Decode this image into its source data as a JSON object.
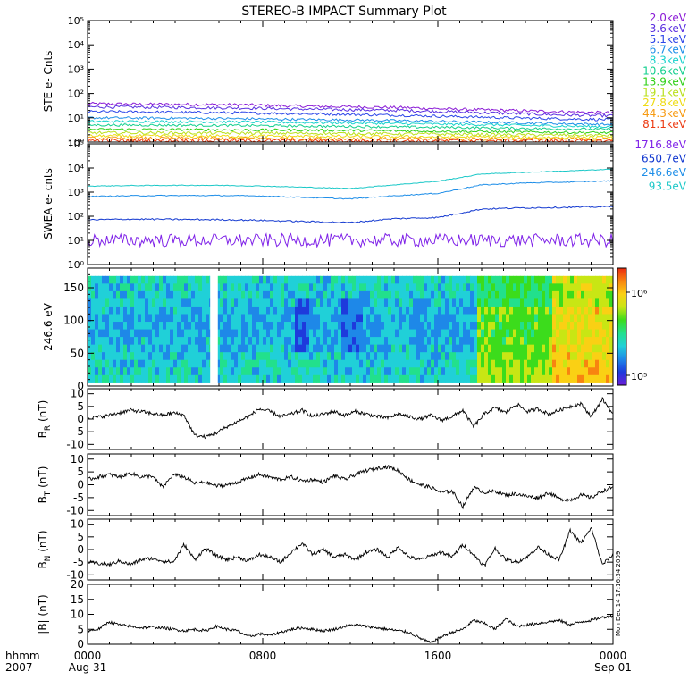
{
  "chart_data": {
    "type": "line",
    "title": "STEREO-B IMPACT Summary Plot",
    "time_axis": {
      "corner_labels": [
        "hhmm",
        "2007"
      ],
      "ticks": [
        {
          "hours": 0,
          "line1": "0000",
          "line2": "Aug 31"
        },
        {
          "hours": 8,
          "line1": "0800",
          "line2": ""
        },
        {
          "hours": 16,
          "line1": "1600",
          "line2": ""
        },
        {
          "hours": 24,
          "line1": "0000",
          "line2": "Sep 01"
        }
      ],
      "range_hours": [
        0,
        24
      ]
    },
    "side_stamp": "Mon Dec 14 17:16:34 2009",
    "panels": [
      {
        "id": "ste",
        "ylabel": "STE e- Cnts",
        "scale": "log",
        "ylim_exp": [
          0,
          5
        ],
        "tick_labels": [
          "10⁰",
          "10¹",
          "10²",
          "10³",
          "10⁴",
          "10⁵"
        ],
        "legend": [
          {
            "label": "2.0keV",
            "color": "#8a1ad6"
          },
          {
            "label": "3.6keV",
            "color": "#5a2fe0"
          },
          {
            "label": "5.1keV",
            "color": "#2c46e8"
          },
          {
            "label": "6.7keV",
            "color": "#1e90e8"
          },
          {
            "label": "8.3keV",
            "color": "#18d2cc"
          },
          {
            "label": "10.6keV",
            "color": "#12cf8e"
          },
          {
            "label": "13.9keV",
            "color": "#2fd017"
          },
          {
            "label": "19.1keV",
            "color": "#b9e01a"
          },
          {
            "label": "27.8keV",
            "color": "#eedb10"
          },
          {
            "label": "44.3keV",
            "color": "#f79a10"
          },
          {
            "label": "81.1keV",
            "color": "#ec3a12"
          }
        ],
        "series": [
          {
            "label": "2.0keV",
            "log_values": [
              1.58,
              1.56,
              1.55,
              1.53,
              1.48,
              1.45,
              1.42,
              1.35,
              1.3,
              1.25,
              1.2
            ]
          },
          {
            "label": "3.6keV",
            "log_values": [
              1.45,
              1.44,
              1.42,
              1.4,
              1.36,
              1.33,
              1.3,
              1.24,
              1.18,
              1.12,
              1.08
            ]
          },
          {
            "label": "5.1keV",
            "log_values": [
              1.25,
              1.24,
              1.22,
              1.2,
              1.17,
              1.14,
              1.1,
              1.05,
              1.0,
              0.96,
              0.92
            ]
          },
          {
            "label": "6.7keV",
            "log_values": [
              1.0,
              0.99,
              0.98,
              0.96,
              0.93,
              0.91,
              0.88,
              0.84,
              0.8,
              0.76,
              0.72
            ]
          },
          {
            "label": "8.3keV",
            "log_values": [
              0.85,
              0.85,
              0.84,
              0.83,
              0.81,
              0.79,
              0.76,
              0.73,
              0.7,
              0.66,
              0.63
            ]
          },
          {
            "label": "10.6keV",
            "log_values": [
              0.7,
              0.7,
              0.69,
              0.68,
              0.66,
              0.64,
              0.62,
              0.6,
              0.57,
              0.54,
              0.52
            ]
          },
          {
            "label": "13.9keV",
            "log_values": [
              0.52,
              0.52,
              0.51,
              0.5,
              0.49,
              0.48,
              0.46,
              0.44,
              0.42,
              0.4,
              0.38
            ]
          },
          {
            "label": "19.1keV",
            "log_values": [
              0.38,
              0.38,
              0.37,
              0.37,
              0.36,
              0.35,
              0.34,
              0.32,
              0.3,
              0.29,
              0.28
            ]
          },
          {
            "label": "27.8keV",
            "log_values": [
              0.25,
              0.25,
              0.25,
              0.24,
              0.24,
              0.23,
              0.22,
              0.21,
              0.2,
              0.19,
              0.18
            ]
          },
          {
            "label": "44.3keV",
            "log_values": [
              0.15,
              0.15,
              0.15,
              0.15,
              0.14,
              0.14,
              0.13,
              0.13,
              0.12,
              0.12,
              0.11
            ]
          },
          {
            "label": "81.1keV",
            "log_values": [
              0.06,
              0.06,
              0.06,
              0.06,
              0.06,
              0.05,
              0.05,
              0.05,
              0.05,
              0.05,
              0.05
            ]
          }
        ]
      },
      {
        "id": "swea",
        "ylabel": "SWEA e- cnts",
        "scale": "log",
        "ylim_exp": [
          0,
          5
        ],
        "tick_labels": [
          "10⁰",
          "10¹",
          "10²",
          "10³",
          "10⁴",
          "10⁵"
        ],
        "legend": [
          {
            "label": "1716.8eV",
            "color": "#7f22e8"
          },
          {
            "label": "650.7eV",
            "color": "#1238d0"
          },
          {
            "label": "246.6eV",
            "color": "#1e8ee8"
          },
          {
            "label": "93.5eV",
            "color": "#1cc8c8"
          }
        ],
        "series": [
          {
            "label": "1716.8eV",
            "log_values": [
              1.0,
              1.0,
              1.0,
              1.0,
              1.0,
              1.0,
              1.0,
              1.0,
              1.0,
              1.0,
              1.0,
              1.0,
              1.0
            ]
          },
          {
            "label": "650.7eV",
            "log_values": [
              1.85,
              1.88,
              1.87,
              1.86,
              1.83,
              1.78,
              1.74,
              1.9,
              1.95,
              2.3,
              2.35,
              2.37,
              2.4
            ]
          },
          {
            "label": "246.6eV",
            "log_values": [
              2.82,
              2.85,
              2.86,
              2.86,
              2.84,
              2.78,
              2.72,
              2.85,
              2.95,
              3.3,
              3.38,
              3.42,
              3.47
            ]
          },
          {
            "label": "93.5eV",
            "log_values": [
              3.25,
              3.27,
              3.28,
              3.28,
              3.25,
              3.2,
              3.15,
              3.3,
              3.45,
              3.75,
              3.82,
              3.88,
              3.95
            ]
          }
        ]
      },
      {
        "id": "pad",
        "type": "heatmap",
        "ylabel": "246.6 eV",
        "ylim": [
          0,
          180
        ],
        "yticks": [
          0,
          50,
          100,
          150
        ],
        "colorbar_labels": [
          "10⁵",
          "10⁶"
        ],
        "colorscale": [
          "#6a1fd8",
          "#1e3adc",
          "#1e88e8",
          "#20d0d8",
          "#22e08c",
          "#3cdc1c",
          "#c8e614",
          "#fad014",
          "#f88410",
          "#ea2a10"
        ]
      },
      {
        "id": "br",
        "ylabel": "B_R (nT)",
        "ylabel_main": "B",
        "ylabel_sub": "R",
        "ylabel_unit": "(nT)",
        "ylim": [
          -12,
          12
        ],
        "yticks": [
          -10,
          -5,
          0,
          5,
          10
        ],
        "values": [
          0.5,
          0.8,
          1.5,
          2.5,
          3.5,
          3.0,
          2.2,
          1.5,
          2.5,
          1.5,
          -6.5,
          -7.0,
          -5.5,
          -3.0,
          -1.0,
          1.0,
          4.0,
          3.0,
          1.0,
          2.0,
          3.5,
          1.0,
          2.0,
          3.0,
          1.5,
          3.0,
          2.0,
          1.0,
          0.5,
          2.0,
          1.0,
          0.0,
          1.5,
          -0.5,
          1.0,
          3.5,
          -3.0,
          2.0,
          4.5,
          2.5,
          6.0,
          3.0,
          4.0,
          2.0,
          3.5,
          5.0,
          6.0,
          1.0,
          8.0,
          2.0
        ]
      },
      {
        "id": "bt",
        "ylabel": "B_T (nT)",
        "ylabel_main": "B",
        "ylabel_sub": "T",
        "ylabel_unit": "(nT)",
        "ylim": [
          -12,
          12
        ],
        "yticks": [
          -10,
          -5,
          0,
          5,
          10
        ],
        "values": [
          2.0,
          3.0,
          4.0,
          3.0,
          4.5,
          3.0,
          3.5,
          -1.0,
          4.0,
          3.0,
          0.5,
          1.0,
          -0.5,
          0.0,
          1.0,
          2.5,
          4.0,
          3.0,
          2.0,
          3.0,
          1.5,
          2.0,
          1.0,
          3.5,
          2.0,
          4.0,
          5.5,
          6.5,
          7.0,
          5.5,
          2.0,
          0.0,
          -1.0,
          -3.0,
          -2.5,
          -8.5,
          -1.0,
          -3.0,
          -2.5,
          -4.0,
          -3.5,
          -4.5,
          -5.0,
          -3.0,
          -5.5,
          -6.0,
          -4.0,
          -5.0,
          -2.5,
          -1.0
        ]
      },
      {
        "id": "bn",
        "ylabel": "B_N (nT)",
        "ylabel_main": "B",
        "ylabel_sub": "N",
        "ylabel_unit": "(nT)",
        "ylim": [
          -12,
          12
        ],
        "yticks": [
          -10,
          -5,
          0,
          5,
          10
        ],
        "values": [
          -5.0,
          -5.5,
          -6.0,
          -4.5,
          -6.0,
          -4.0,
          -3.5,
          -4.5,
          -5.0,
          2.0,
          -4.0,
          0.5,
          -2.5,
          -4.0,
          -3.0,
          -4.5,
          -2.0,
          -3.0,
          -5.0,
          -1.0,
          2.5,
          -2.0,
          0.0,
          -3.0,
          -2.0,
          -4.0,
          -1.0,
          0.0,
          -3.0,
          1.0,
          -3.0,
          -4.0,
          -2.5,
          -1.0,
          -3.0,
          2.0,
          -2.0,
          -6.5,
          0.5,
          -4.0,
          -5.0,
          -3.0,
          1.0,
          -2.0,
          -4.0,
          7.5,
          2.5,
          8.5,
          -6.0,
          -2.0
        ]
      },
      {
        "id": "bmag",
        "ylabel": "|B| (nT)",
        "ylim": [
          0,
          20
        ],
        "yticks": [
          0,
          5,
          10,
          15,
          20
        ],
        "values": [
          4.5,
          5.0,
          7.5,
          6.5,
          6.0,
          5.5,
          5.8,
          5.5,
          5.0,
          4.5,
          5.0,
          4.5,
          6.0,
          5.0,
          4.5,
          2.5,
          3.5,
          3.0,
          4.0,
          5.0,
          5.5,
          5.0,
          4.5,
          5.0,
          6.0,
          6.5,
          6.0,
          5.5,
          5.0,
          4.5,
          4.0,
          2.0,
          0.5,
          2.5,
          4.0,
          5.0,
          8.0,
          7.0,
          5.0,
          8.5,
          6.0,
          6.5,
          7.0,
          7.5,
          8.0,
          6.5,
          7.5,
          8.0,
          9.0,
          9.5
        ]
      }
    ]
  }
}
